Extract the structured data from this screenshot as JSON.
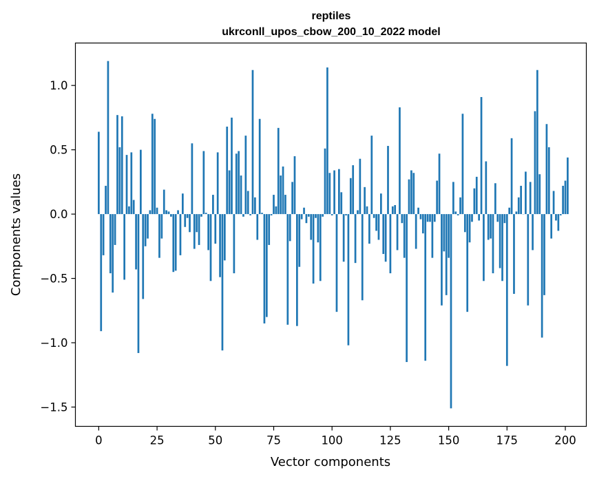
{
  "chart_data": {
    "type": "bar",
    "title": "reptiles",
    "subtitle": "ukrconll_upos_cbow_200_10_2022 model",
    "xlabel": "Vector components",
    "ylabel": "Components values",
    "xlim": [
      -10,
      209
    ],
    "ylim": [
      -1.65,
      1.33
    ],
    "xticks": [
      0,
      25,
      50,
      75,
      100,
      125,
      150,
      175,
      200
    ],
    "xtick_labels": [
      "0",
      "25",
      "50",
      "75",
      "100",
      "125",
      "150",
      "175",
      "200"
    ],
    "yticks": [
      -1.5,
      -1.0,
      -0.5,
      0.0,
      0.5,
      1.0
    ],
    "ytick_labels": [
      "−1.5",
      "−1.0",
      "−0.5",
      "0.0",
      "0.5",
      "1.0"
    ],
    "bar_color": "#1f77b4",
    "grid": false,
    "values": [
      0.64,
      -0.91,
      -0.32,
      0.22,
      1.19,
      -0.46,
      -0.61,
      -0.24,
      0.77,
      0.52,
      0.76,
      -0.51,
      0.46,
      0.06,
      0.48,
      0.11,
      -0.43,
      -1.08,
      0.5,
      -0.66,
      -0.25,
      -0.19,
      0.03,
      0.78,
      0.74,
      0.05,
      -0.34,
      -0.19,
      0.19,
      0.03,
      0.02,
      -0.02,
      -0.45,
      -0.44,
      0.03,
      -0.32,
      0.16,
      -0.1,
      -0.03,
      -0.14,
      0.55,
      -0.27,
      -0.14,
      -0.24,
      -0.02,
      0.49,
      0.01,
      -0.28,
      -0.52,
      0.15,
      -0.23,
      0.48,
      -0.49,
      -1.06,
      -0.36,
      0.68,
      0.34,
      0.75,
      -0.46,
      0.47,
      0.49,
      0.3,
      -0.02,
      0.61,
      0.18,
      -0.01,
      1.12,
      0.13,
      -0.2,
      0.74,
      0.01,
      -0.85,
      -0.8,
      -0.24,
      -0.01,
      0.15,
      0.06,
      0.67,
      0.3,
      0.37,
      0.15,
      -0.86,
      -0.21,
      0.25,
      0.45,
      -0.87,
      -0.41,
      -0.04,
      0.05,
      -0.07,
      -0.02,
      -0.2,
      -0.54,
      -0.03,
      -0.22,
      -0.52,
      -0.02,
      0.51,
      1.14,
      0.32,
      -0.01,
      0.34,
      -0.76,
      0.35,
      0.17,
      -0.37,
      -0.01,
      -1.02,
      0.28,
      0.38,
      -0.38,
      0.03,
      0.43,
      -0.67,
      0.21,
      0.06,
      -0.23,
      0.61,
      -0.03,
      -0.13,
      -0.2,
      0.16,
      -0.31,
      -0.37,
      0.53,
      -0.46,
      0.06,
      0.07,
      -0.28,
      0.83,
      -0.07,
      -0.34,
      -1.15,
      0.27,
      0.34,
      0.32,
      -0.27,
      0.05,
      -0.04,
      -0.15,
      -1.14,
      -0.06,
      -0.06,
      -0.34,
      -0.06,
      0.26,
      0.47,
      -0.71,
      -0.29,
      -0.63,
      -0.34,
      -1.51,
      0.25,
      0.02,
      -0.01,
      0.13,
      0.78,
      -0.14,
      -0.76,
      -0.22,
      -0.06,
      0.2,
      0.29,
      -0.05,
      0.91,
      -0.52,
      0.41,
      -0.2,
      -0.19,
      -0.46,
      0.24,
      -0.06,
      -0.42,
      -0.52,
      -0.07,
      -1.18,
      0.05,
      0.59,
      -0.62,
      0.02,
      0.13,
      0.22,
      0.0,
      0.33,
      -0.71,
      0.25,
      -0.28,
      0.8,
      1.12,
      0.31,
      -0.96,
      -0.63,
      0.7,
      0.52,
      -0.19,
      0.18,
      -0.05,
      -0.13,
      -0.01,
      0.22,
      0.26,
      0.44
    ]
  }
}
